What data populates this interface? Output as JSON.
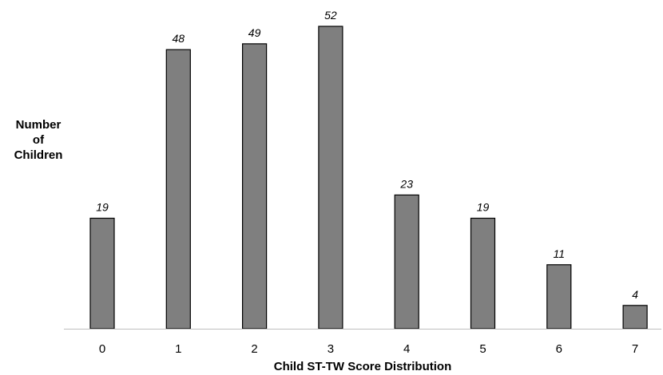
{
  "chart_data": {
    "type": "bar",
    "categories": [
      "0",
      "1",
      "2",
      "3",
      "4",
      "5",
      "6",
      "7"
    ],
    "values": [
      19,
      48,
      49,
      52,
      23,
      19,
      11,
      4
    ],
    "data_labels": [
      "19",
      "48",
      "49",
      "52",
      "23",
      "19",
      "11",
      "4"
    ],
    "title": "",
    "xlabel": "Child ST-TW Score Distribution",
    "ylabel_lines": [
      "Number",
      "of",
      "Children"
    ],
    "ylim": [
      0,
      52
    ],
    "grid": false,
    "legend": "none",
    "bar_color": "#7f7f7f",
    "bar_outline_color": "#000000",
    "axis_color": "#bfbfbf"
  }
}
